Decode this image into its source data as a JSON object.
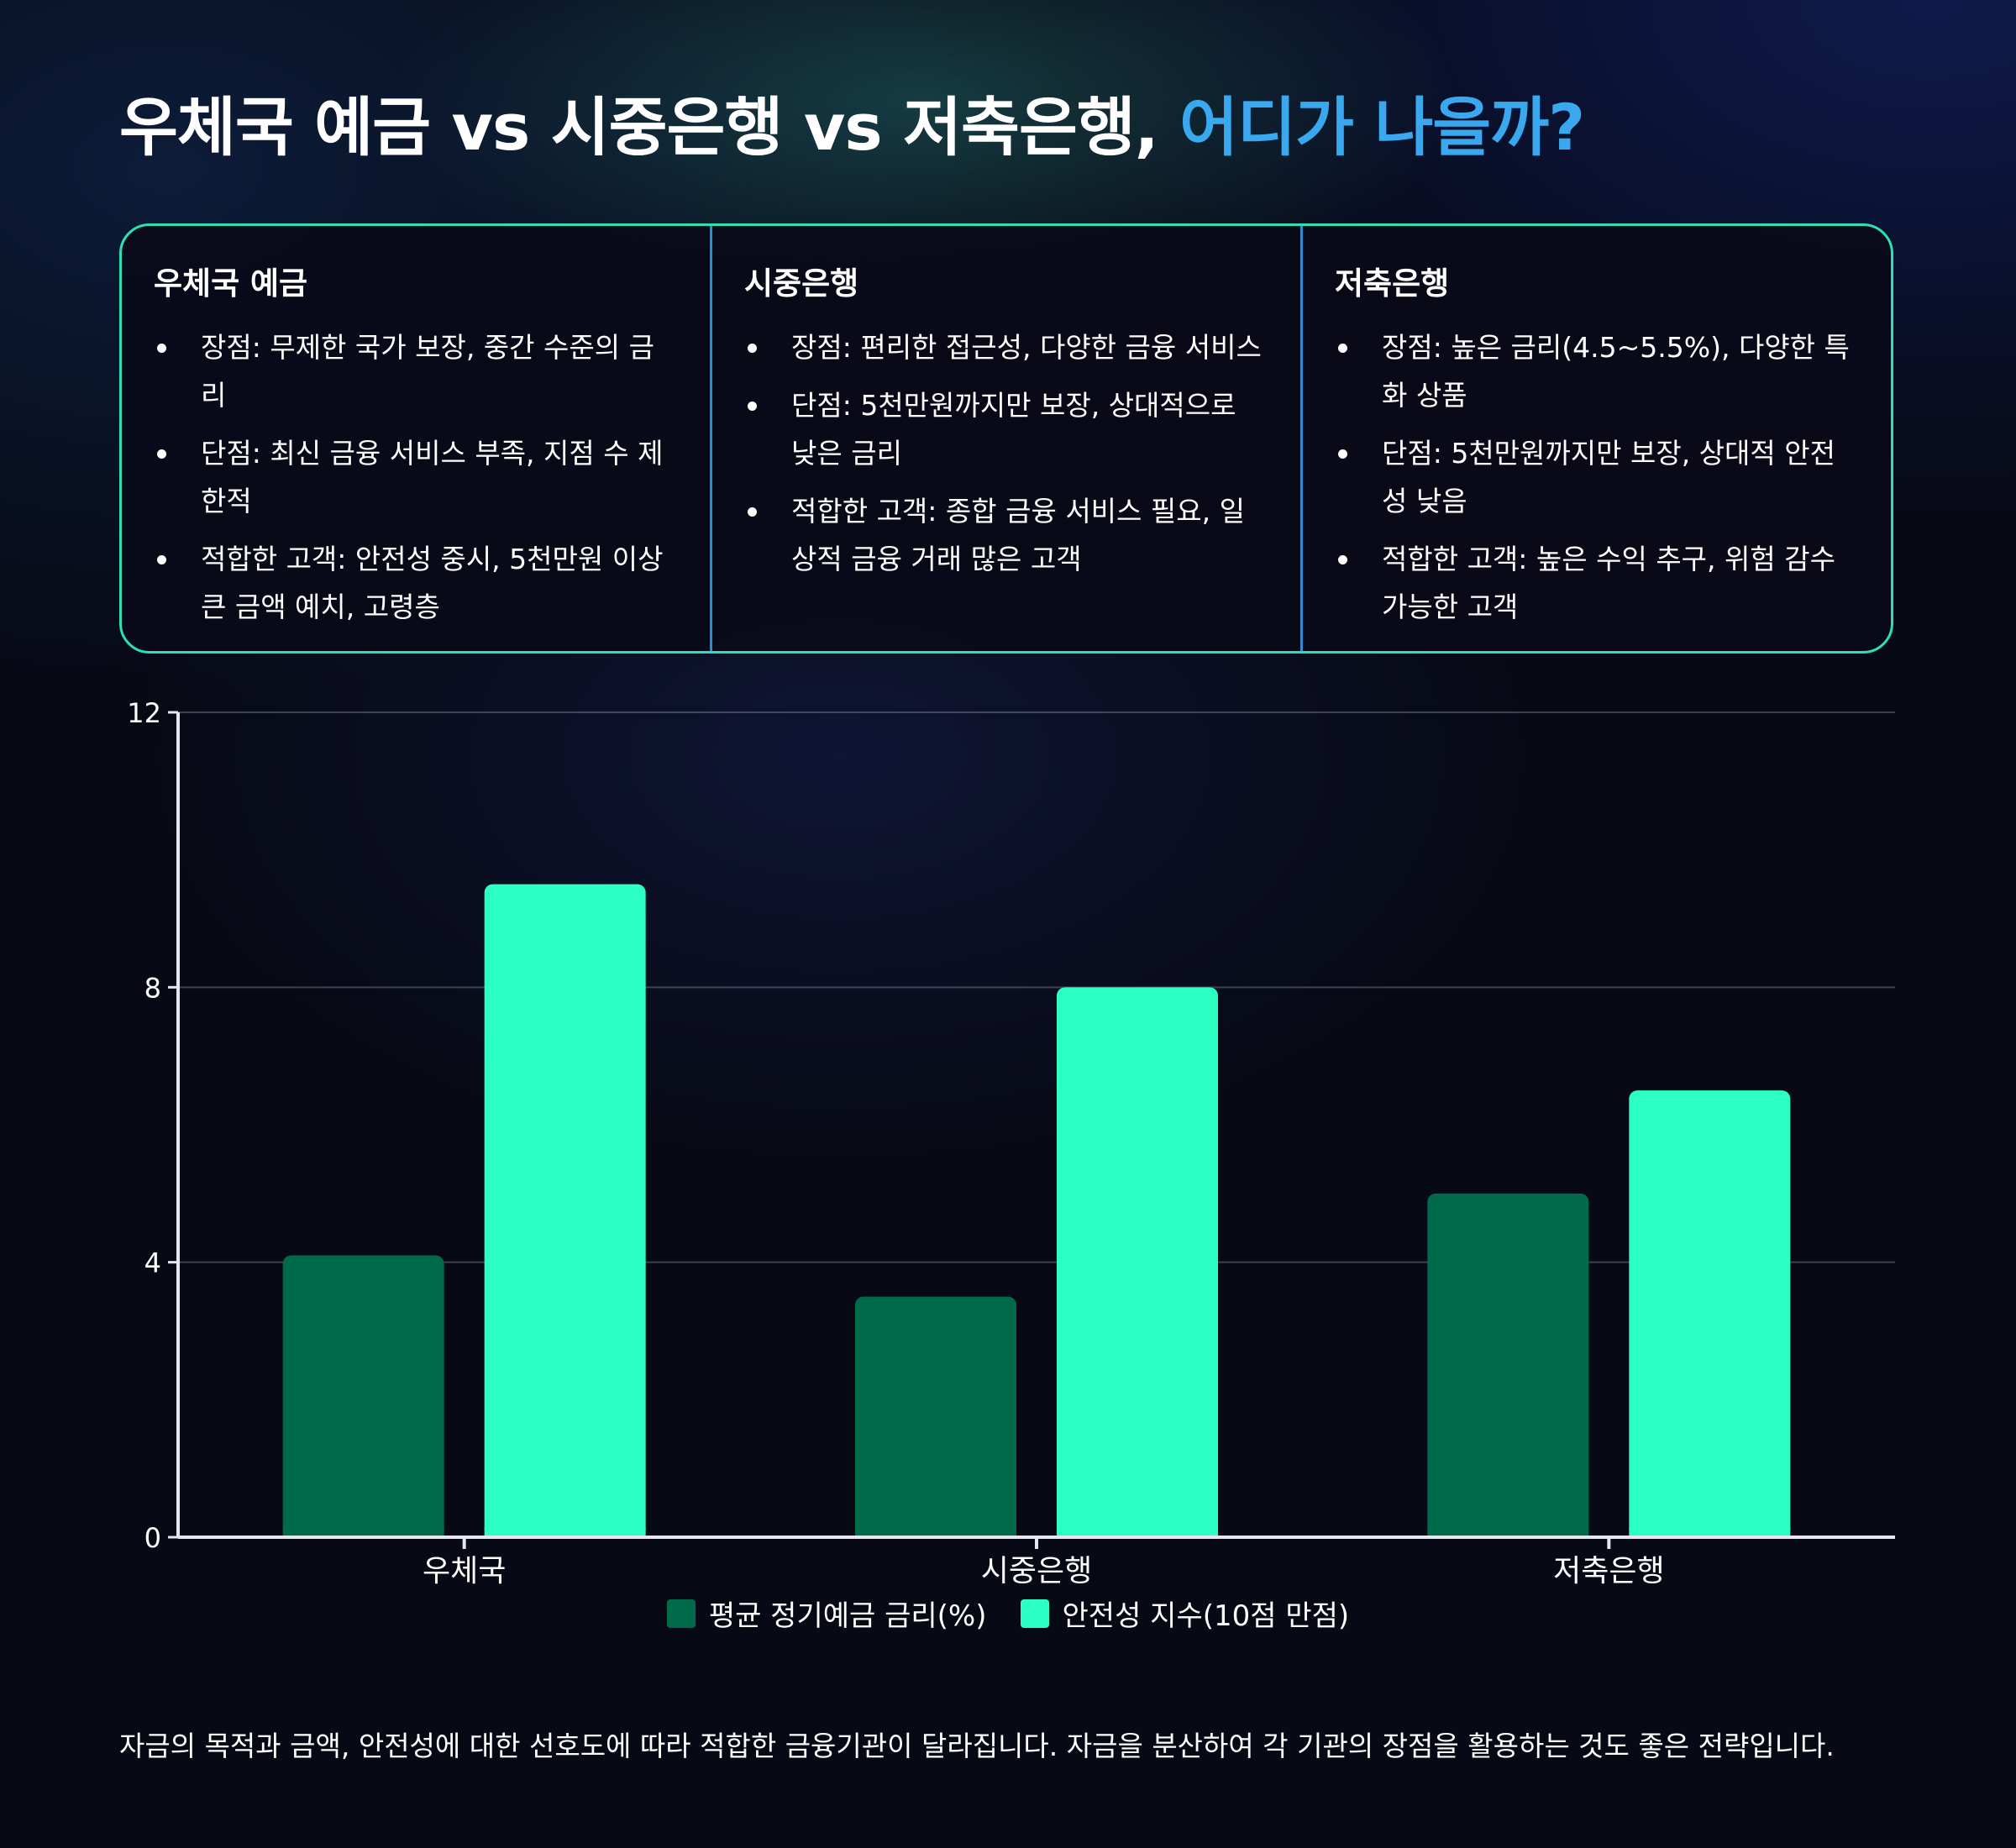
{
  "title": {
    "main": "우체국 예금 vs 시중은행 vs 저축은행,",
    "accent": "어디가 나을까?"
  },
  "columns": [
    {
      "title": "우체국 예금",
      "items": [
        "장점: 무제한 국가 보장, 중간 수준의 금리",
        "단점: 최신 금융 서비스 부족, 지점 수 제한적",
        "적합한 고객: 안전성 중시, 5천만원 이상 큰 금액 예치, 고령층"
      ]
    },
    {
      "title": "시중은행",
      "items": [
        "장점: 편리한 접근성, 다양한 금융 서비스",
        "단점: 5천만원까지만 보장, 상대적으로 낮은 금리",
        "적합한 고객: 종합 금융 서비스 필요, 일상적 금융 거래 많은 고객"
      ]
    },
    {
      "title": "저축은행",
      "items": [
        "장점: 높은 금리(4.5~5.5%), 다양한 특화 상품",
        "단점: 5천만원까지만 보장, 상대적 안전성 낮음",
        "적합한 고객: 높은 수익 추구, 위험 감수 가능한 고객"
      ]
    }
  ],
  "chart_data": {
    "type": "bar",
    "categories": [
      "우체국",
      "시중은행",
      "저축은행"
    ],
    "series": [
      {
        "name": "평균 정기예금 금리(%)",
        "values": [
          4.1,
          3.5,
          5.0
        ],
        "color": "#006b4b"
      },
      {
        "name": "안전성 지수(10점 만점)",
        "values": [
          9.5,
          8.0,
          6.5
        ],
        "color": "#2bffc2"
      }
    ],
    "ylim": [
      0,
      12
    ],
    "yticks": [
      "0",
      "4",
      "8",
      "12"
    ],
    "grid": true,
    "legend_position": "bottom"
  },
  "footer": "자금의 목적과 금액, 안전성에 대한 선호도에 따라 적합한 금융기관이 달라집니다. 자금을 분산하여 각 기관의 장점을 활용하는 것도 좋은 전략입니다."
}
